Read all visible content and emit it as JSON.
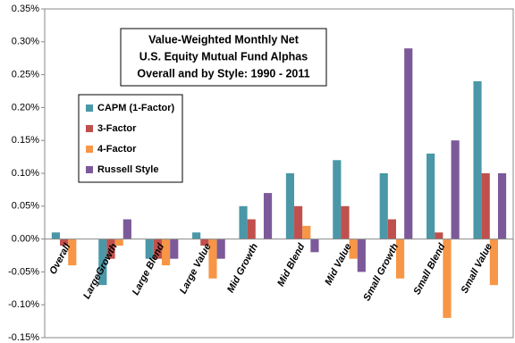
{
  "chart_data": {
    "type": "bar",
    "title": [
      "Value-Weighted Monthly Net",
      "U.S. Equity Mutual Fund Alphas",
      "Overall and by Style: 1990 - 2011"
    ],
    "categories": [
      "Overall",
      "LargeGrowth",
      "Large Blend",
      "Large Value",
      "Mid Growth",
      "Mid Blend",
      "Mid Value",
      "Small Growth",
      "Small Blend",
      "Small Value"
    ],
    "series": [
      {
        "name": "CAPM (1-Factor)",
        "color": "#4a97a8",
        "values": [
          0.01,
          -0.07,
          -0.03,
          0.01,
          0.05,
          0.1,
          0.12,
          0.1,
          0.13,
          0.24
        ]
      },
      {
        "name": "3-Factor",
        "color": "#c0504d",
        "values": [
          -0.01,
          -0.03,
          -0.03,
          -0.01,
          0.03,
          0.05,
          0.05,
          0.03,
          0.01,
          0.1
        ]
      },
      {
        "name": "4-Factor",
        "color": "#f79646",
        "values": [
          -0.04,
          -0.01,
          -0.04,
          -0.06,
          0.0,
          0.02,
          -0.03,
          -0.06,
          -0.12,
          -0.07
        ]
      },
      {
        "name": "Russell Style",
        "color": "#7c5a9a",
        "values": [
          0.0,
          0.03,
          -0.03,
          -0.03,
          0.07,
          -0.02,
          -0.05,
          0.29,
          0.15,
          0.1
        ]
      }
    ],
    "ylim": [
      -0.15,
      0.35
    ],
    "yticks": [
      {
        "value": -0.15,
        "label": "-0.15%"
      },
      {
        "value": -0.1,
        "label": "-0.10%"
      },
      {
        "value": -0.05,
        "label": "-0.05%"
      },
      {
        "value": 0.0,
        "label": "0.00%"
      },
      {
        "value": 0.05,
        "label": "0.05%"
      },
      {
        "value": 0.1,
        "label": "0.10%"
      },
      {
        "value": 0.15,
        "label": "0.15%"
      },
      {
        "value": 0.2,
        "label": "0.20%"
      },
      {
        "value": 0.25,
        "label": "0.25%"
      },
      {
        "value": 0.3,
        "label": "0.30%"
      },
      {
        "value": 0.35,
        "label": "0.35%"
      }
    ],
    "grid": false
  }
}
